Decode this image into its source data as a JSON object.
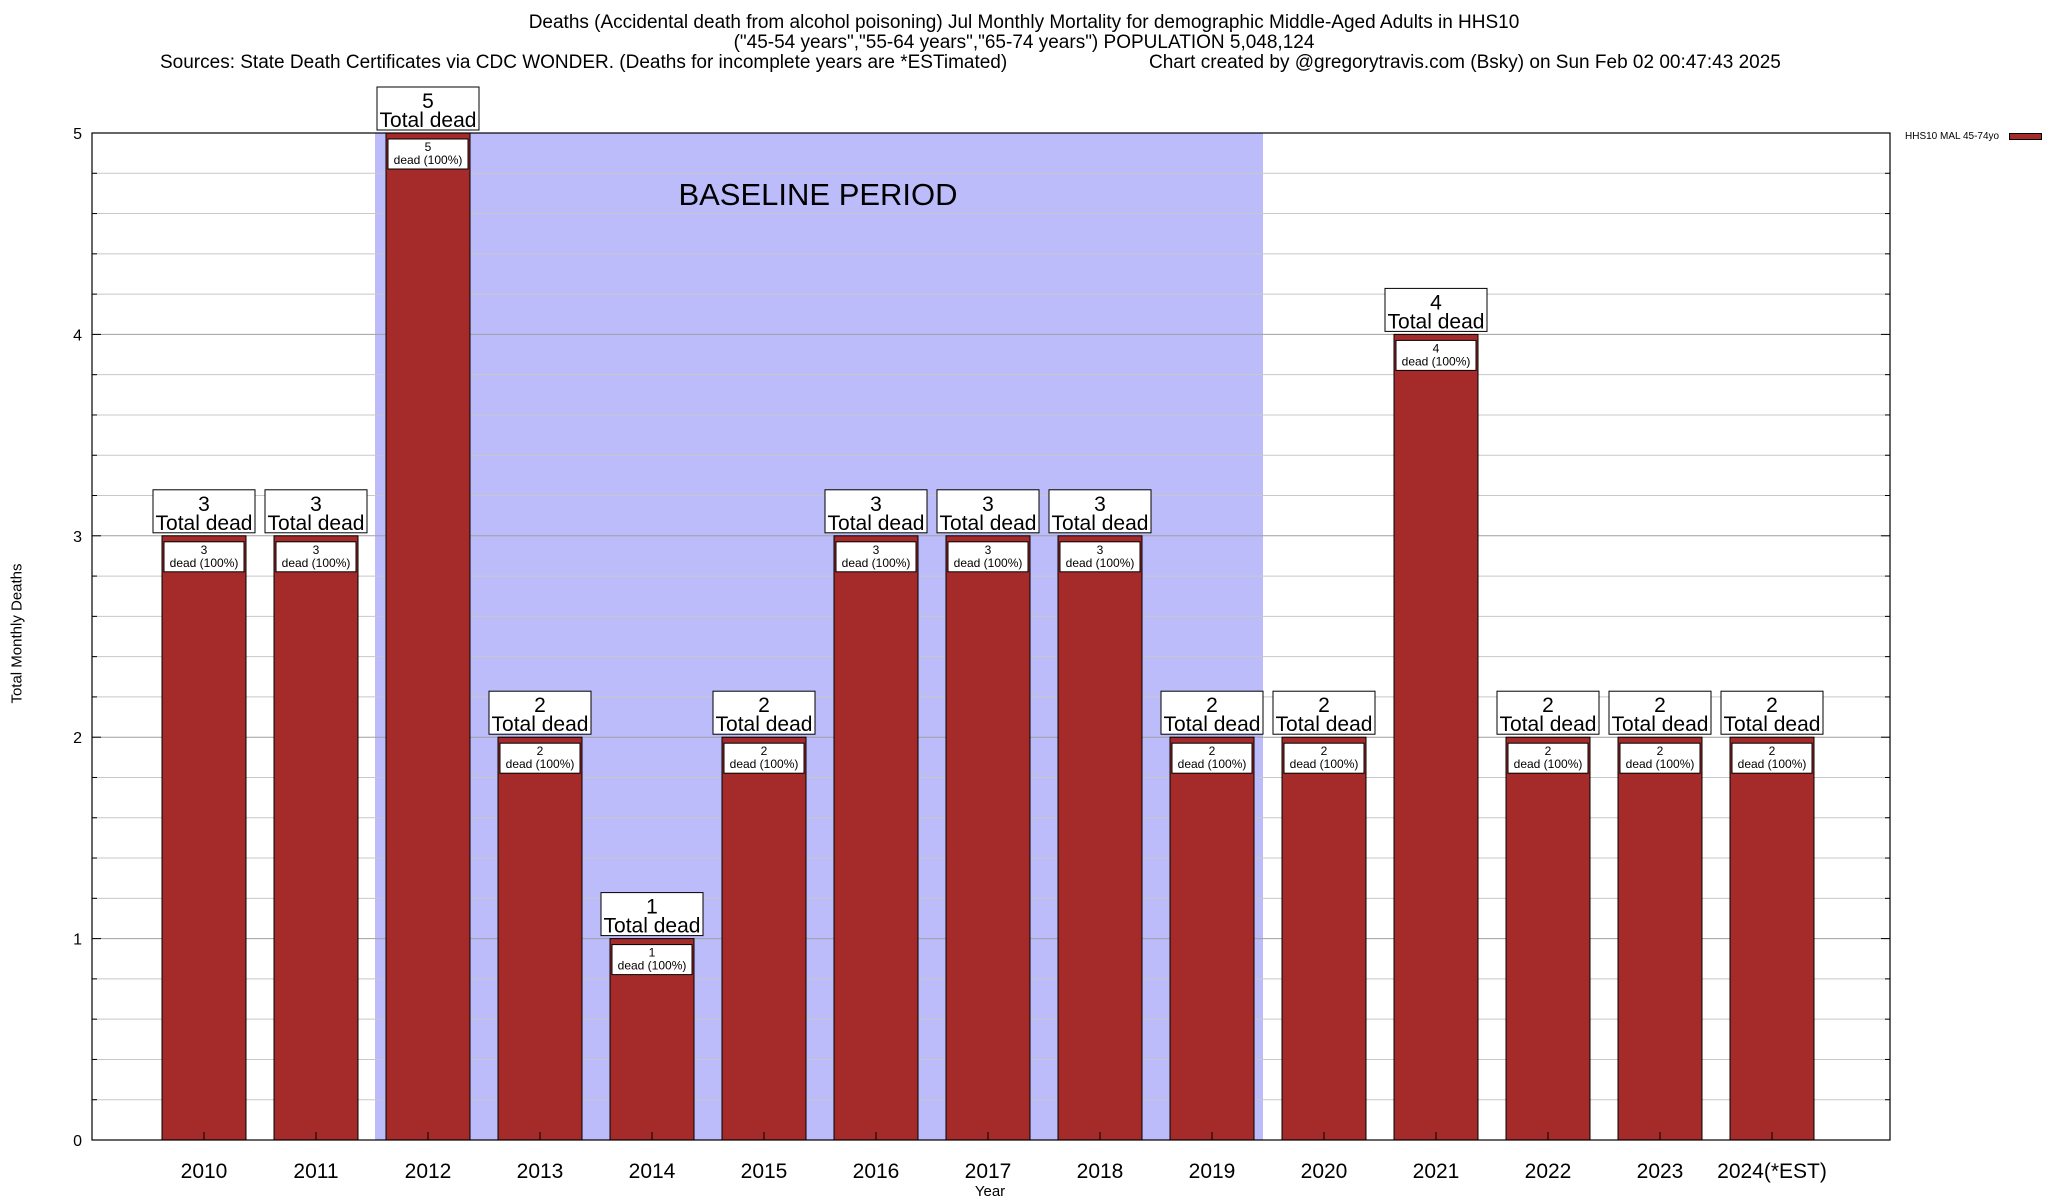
{
  "header": {
    "title_line1": "Deaths (Accidental death from alcohol poisoning) Jul Monthly Mortality for demographic Middle-Aged Adults in HHS10",
    "title_line2": "(\"45-54 years\",\"55-64 years\",\"65-74 years\") POPULATION 5,048,124",
    "title_line3": "Sources: State Death Certificates via CDC WONDER. (Deaths for incomplete years are *ESTimated)",
    "credit": "Chart created by @gregorytravis.com (Bsky) on Sun Feb 02 00:47:43 2025"
  },
  "legend": {
    "label": "HHS10 MAL 45-74yo"
  },
  "chart_data": {
    "type": "bar",
    "title": "Deaths (Accidental death from alcohol poisoning) Jul Monthly Mortality for demographic Middle-Aged Adults in HHS10",
    "xlabel": "Year",
    "ylabel": "Total Monthly Deaths",
    "categories": [
      "2010",
      "2011",
      "2012",
      "2013",
      "2014",
      "2015",
      "2016",
      "2017",
      "2018",
      "2019",
      "2020",
      "2021",
      "2022",
      "2023",
      "2024(*EST)"
    ],
    "series": [
      {
        "name": "HHS10 MAL 45-74yo",
        "values": [
          3,
          3,
          5,
          2,
          1,
          2,
          3,
          3,
          3,
          2,
          2,
          4,
          2,
          2,
          2
        ],
        "color": "#a52a2a"
      }
    ],
    "ylim": [
      0,
      5
    ],
    "yticks": [
      0,
      1,
      2,
      3,
      4,
      5
    ],
    "grid": true,
    "legend_position": "top-right",
    "total_label_suffix": "Total dead",
    "inner_label_suffix": "dead (100%)",
    "baseline": {
      "label": "BASELINE PERIOD",
      "start_category": "2012",
      "end_category": "2019",
      "color": "#bcbcfb"
    }
  }
}
